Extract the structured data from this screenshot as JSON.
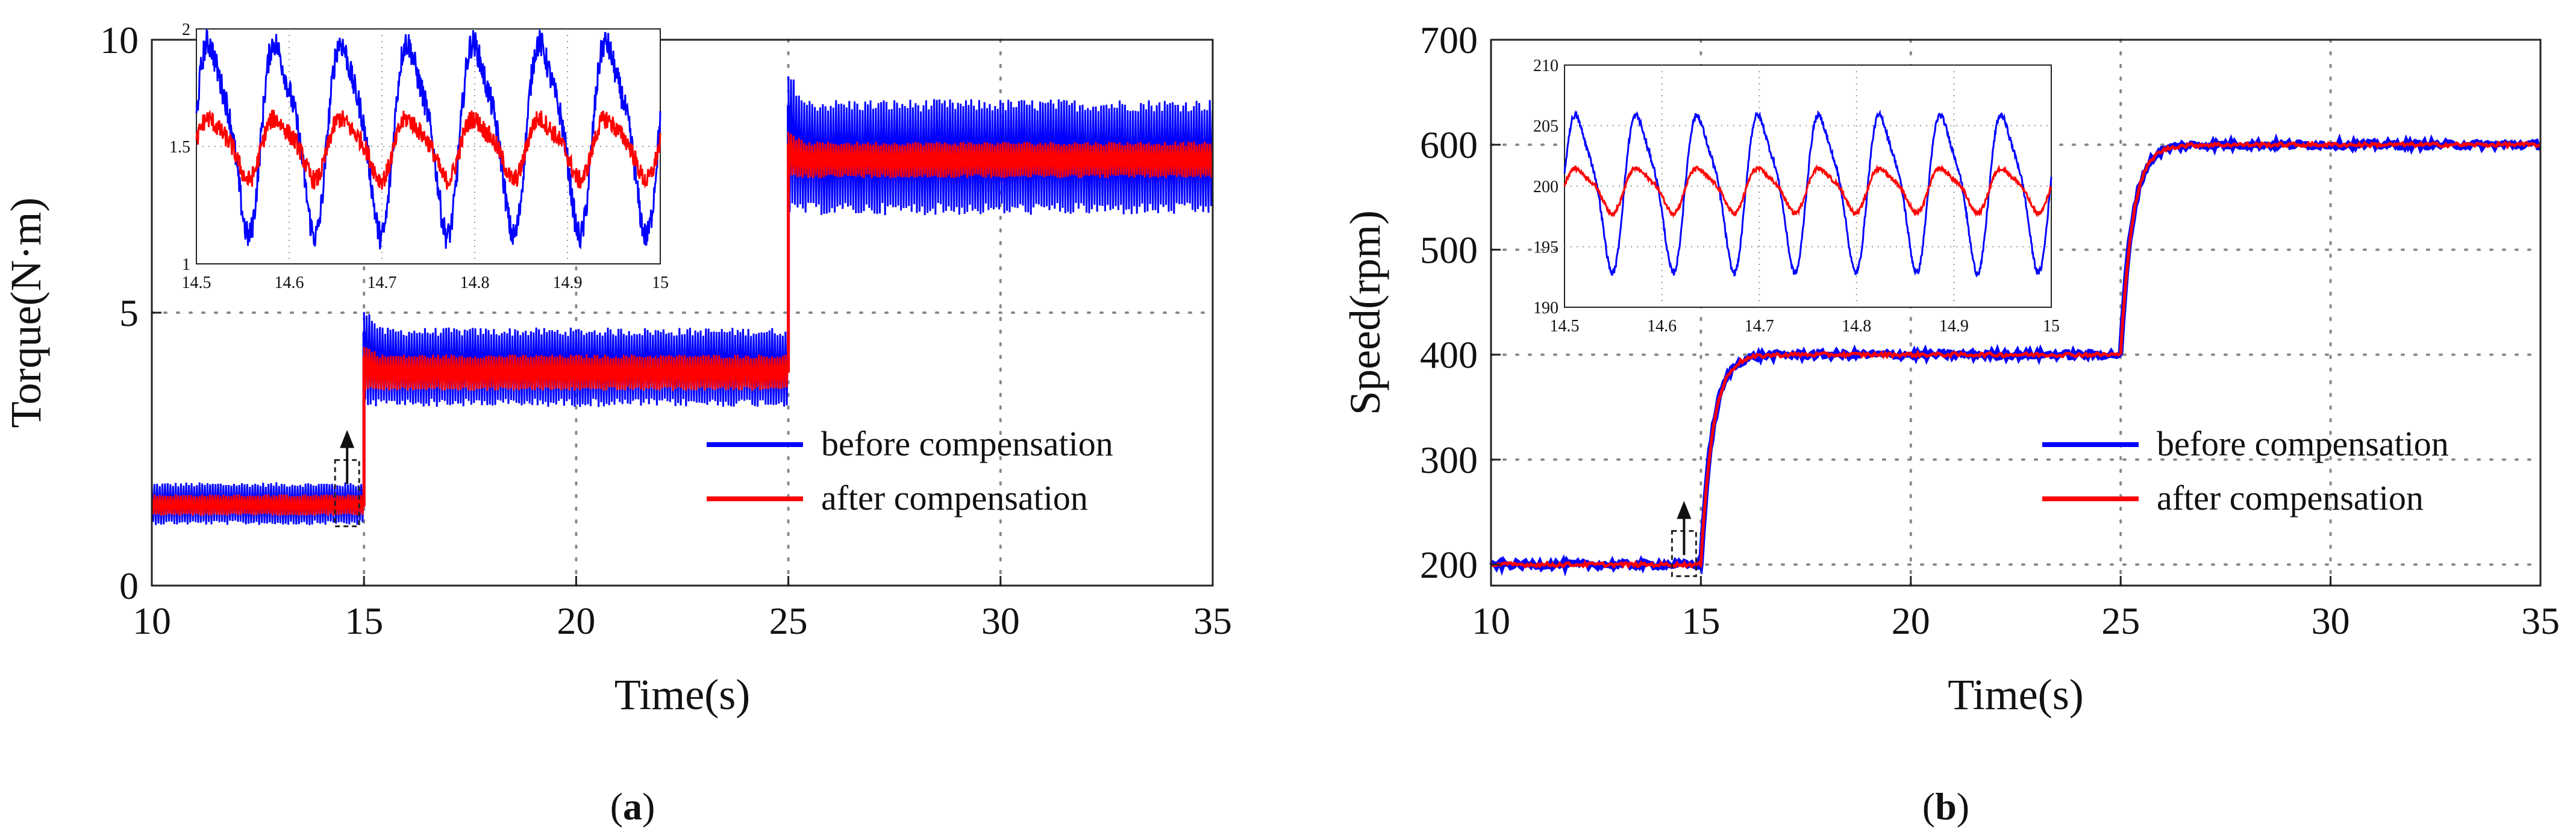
{
  "chart_data": [
    {
      "type": "line",
      "panel_label_open": "(",
      "panel_label": "a",
      "panel_label_close": ")",
      "xlabel": "Time(s)",
      "ylabel": "Torque(N·m)",
      "xlim": [
        10,
        35
      ],
      "ylim": [
        0,
        10
      ],
      "xticks": [
        10,
        15,
        20,
        25,
        30,
        35
      ],
      "yticks": [
        0,
        5,
        10
      ],
      "grid": true,
      "legend_position": "lower-right",
      "series": [
        {
          "name": "before compensation",
          "color": "#0000ff",
          "segments": [
            {
              "t": [
                10,
                15
              ],
              "mean": 1.45,
              "low": 1.15,
              "high": 1.85
            },
            {
              "t": [
                15,
                25
              ],
              "mean": 3.95,
              "low": 3.35,
              "high": 4.65
            },
            {
              "t": [
                25,
                35
              ],
              "mean": 7.9,
              "low": 6.9,
              "high": 8.8
            }
          ]
        },
        {
          "name": "after compensation",
          "color": "#ff0000",
          "segments": [
            {
              "t": [
                10,
                15
              ],
              "mean": 1.45,
              "low": 1.3,
              "high": 1.65
            },
            {
              "t": [
                15,
                25
              ],
              "mean": 3.9,
              "low": 3.6,
              "high": 4.2
            },
            {
              "t": [
                25,
                35
              ],
              "mean": 7.8,
              "low": 7.5,
              "high": 8.1
            }
          ]
        }
      ],
      "inset": {
        "xlim": [
          14.5,
          15
        ],
        "ylim": [
          1,
          2
        ],
        "xticks": [
          "14.5",
          "14.6",
          "14.7",
          "14.8",
          "14.9",
          "15"
        ],
        "yticks": [
          "1",
          "1.5",
          "2"
        ],
        "periods": 7,
        "series": [
          {
            "name": "before compensation",
            "color": "#0000ff",
            "mean": 1.57,
            "amplitude": 0.38
          },
          {
            "name": "after compensation",
            "color": "#ff0000",
            "mean": 1.5,
            "amplitude": 0.12
          }
        ]
      }
    },
    {
      "type": "line",
      "panel_label_open": "(",
      "panel_label": "b",
      "panel_label_close": ")",
      "xlabel": "Time(s)",
      "ylabel": "Speed(rpm)",
      "xlim": [
        10,
        35
      ],
      "ylim": [
        180,
        700
      ],
      "xticks": [
        10,
        15,
        20,
        25,
        30,
        35
      ],
      "yticks": [
        200,
        300,
        400,
        500,
        600,
        700
      ],
      "grid": true,
      "legend_position": "lower-right",
      "series": [
        {
          "name": "before compensation",
          "color": "#0000ff",
          "levels": [
            {
              "t": [
                10,
                15
              ],
              "value": 200
            },
            {
              "t": [
                15,
                25
              ],
              "value": 400
            },
            {
              "t": [
                25,
                35
              ],
              "value": 600
            }
          ]
        },
        {
          "name": "after compensation",
          "color": "#ff0000",
          "levels": [
            {
              "t": [
                10,
                15
              ],
              "value": 200
            },
            {
              "t": [
                15,
                25
              ],
              "value": 400
            },
            {
              "t": [
                25,
                35
              ],
              "value": 600
            }
          ]
        }
      ],
      "inset": {
        "xlim": [
          14.5,
          15
        ],
        "ylim": [
          190,
          210
        ],
        "xticks": [
          "14.5",
          "14.6",
          "14.7",
          "14.8",
          "14.9",
          "15"
        ],
        "yticks": [
          "190",
          "195",
          "200",
          "205",
          "210"
        ],
        "periods": 8,
        "series": [
          {
            "name": "before compensation",
            "color": "#0000ff",
            "mean": 200,
            "amplitude": 6
          },
          {
            "name": "after compensation",
            "color": "#ff0000",
            "mean": 199.8,
            "amplitude": 1.7
          }
        ]
      }
    }
  ]
}
